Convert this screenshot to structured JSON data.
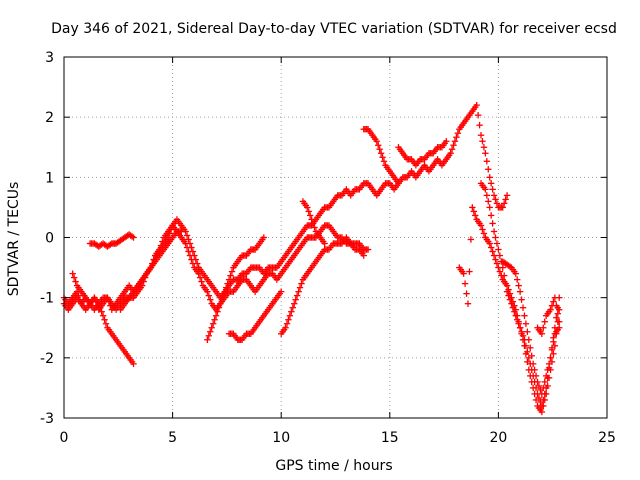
{
  "chart_data": {
    "type": "scatter",
    "title": "Day 346 of 2021, Sidereal Day-to-day VTEC variation (SDTVAR) for receiver ecsd",
    "xlabel": "GPS time / hours",
    "ylabel": "SDTVAR / TECUs",
    "xlim": [
      0,
      25
    ],
    "ylim": [
      -3,
      3
    ],
    "xticks": [
      "0",
      "5",
      "10",
      "15",
      "20",
      "25"
    ],
    "yticks": [
      "-3",
      "-2",
      "-1",
      "0",
      "1",
      "2",
      "3"
    ],
    "grid": true,
    "marker": "+",
    "marker_color": "#ff0000",
    "series": [
      {
        "x": [
          0.0,
          0.2,
          0.4,
          0.6,
          0.8,
          1.0,
          1.2,
          1.4,
          1.6,
          1.8,
          2.0,
          2.2,
          2.4,
          2.6,
          2.8,
          3.0,
          3.2,
          3.4,
          3.6,
          3.8,
          4.0,
          4.2,
          4.4,
          4.6,
          4.8,
          5.0,
          5.2,
          5.4,
          5.6,
          5.8,
          6.0,
          6.2,
          6.4,
          6.6,
          6.8,
          7.0,
          7.2,
          7.4,
          7.6,
          7.8,
          8.0,
          8.2,
          8.4,
          8.6,
          8.8,
          9.0,
          9.2,
          9.4,
          9.6,
          9.8,
          10.0,
          10.2,
          10.4,
          10.6,
          10.8,
          11.0,
          11.2,
          11.4,
          11.6,
          11.8,
          12.0,
          12.2,
          12.4,
          12.6,
          12.8,
          13.0,
          13.2,
          13.4,
          13.6,
          13.8,
          14.0,
          14.2,
          14.4,
          14.6,
          14.8,
          15.0,
          15.2,
          15.4,
          15.6,
          15.8,
          16.0,
          16.2,
          16.4,
          16.6,
          16.8,
          17.0,
          17.2,
          17.4,
          17.6,
          17.8,
          18.0,
          18.2,
          18.4,
          18.6,
          18.8,
          19.0,
          19.2,
          19.4,
          19.6,
          19.8,
          20.0,
          20.2,
          20.4
        ],
        "y": [
          -1.0,
          -1.1,
          -1.0,
          -0.9,
          -1.1,
          -1.0,
          -1.1,
          -1.0,
          -1.2,
          -1.1,
          -1.0,
          -1.2,
          -1.1,
          -1.0,
          -0.9,
          -0.8,
          -0.9,
          -0.8,
          -0.7,
          -0.6,
          -0.5,
          -0.3,
          -0.2,
          -0.1,
          0.0,
          0.2,
          0.3,
          0.2,
          0.1,
          -0.1,
          -0.3,
          -0.5,
          -0.6,
          -0.7,
          -0.8,
          -0.9,
          -1.0,
          -0.9,
          -0.8,
          -0.7,
          -0.7,
          -0.6,
          -0.6,
          -0.5,
          -0.5,
          -0.5,
          -0.6,
          -0.5,
          -0.5,
          -0.5,
          -0.4,
          -0.3,
          -0.2,
          -0.1,
          0.0,
          0.1,
          0.2,
          0.2,
          0.3,
          0.4,
          0.5,
          0.5,
          0.6,
          0.7,
          0.7,
          0.8,
          0.7,
          0.8,
          0.8,
          0.9,
          0.9,
          0.8,
          0.7,
          0.8,
          0.9,
          0.9,
          0.8,
          0.9,
          1.0,
          1.0,
          1.1,
          1.0,
          1.1,
          1.2,
          1.1,
          1.2,
          1.3,
          1.2,
          1.3,
          1.4,
          1.6,
          1.8,
          1.9,
          2.0,
          2.1,
          2.2,
          1.7,
          1.4,
          1.0,
          0.7,
          0.5,
          0.5,
          0.7
        ]
      },
      {
        "x": [
          0.0,
          0.2,
          0.4,
          0.6,
          0.8,
          1.0,
          1.2,
          1.4,
          1.6,
          1.8,
          2.0,
          2.2,
          2.4,
          2.6,
          2.8,
          3.0,
          3.2,
          3.4,
          3.6,
          3.8,
          4.0,
          4.2,
          4.4,
          4.6,
          4.8,
          5.0,
          5.2,
          5.4,
          5.6,
          5.8,
          6.0,
          6.2,
          6.4,
          6.6,
          6.8,
          7.0,
          7.2,
          7.4,
          7.6,
          7.8,
          8.0,
          8.2,
          8.4,
          8.6,
          8.8,
          9.0,
          9.2,
          9.4,
          9.6,
          9.8,
          10.0,
          10.2,
          10.4,
          10.6,
          10.8,
          11.0,
          11.2,
          11.4,
          11.6,
          11.8,
          12.0,
          12.2,
          12.4,
          12.6,
          12.8,
          13.0,
          13.2,
          13.4,
          13.6,
          13.8,
          14.0
        ],
        "y": [
          -1.1,
          -1.2,
          -1.1,
          -1.0,
          -1.1,
          -1.2,
          -1.1,
          -1.0,
          -1.1,
          -1.0,
          -1.0,
          -1.1,
          -1.2,
          -1.1,
          -1.0,
          -1.0,
          -1.0,
          -0.9,
          -0.8,
          -0.6,
          -0.5,
          -0.3,
          -0.2,
          0.0,
          0.1,
          0.2,
          0.1,
          0.0,
          -0.1,
          -0.3,
          -0.5,
          -0.6,
          -0.8,
          -0.9,
          -1.1,
          -1.2,
          -1.1,
          -1.0,
          -0.9,
          -0.9,
          -0.8,
          -0.7,
          -0.7,
          -0.8,
          -0.9,
          -0.8,
          -0.7,
          -0.6,
          -0.6,
          -0.7,
          -0.6,
          -0.5,
          -0.4,
          -0.3,
          -0.2,
          -0.1,
          0.0,
          0.0,
          0.0,
          0.1,
          0.2,
          0.2,
          0.1,
          0.0,
          0.0,
          -0.1,
          -0.1,
          -0.1,
          -0.1,
          -0.2,
          -0.2
        ]
      },
      {
        "x": [
          0.4,
          0.6,
          0.8,
          1.0,
          1.2,
          1.4,
          1.6,
          1.8,
          2.0,
          2.2,
          2.4,
          2.6,
          2.8,
          3.0,
          3.2
        ],
        "y": [
          -0.6,
          -0.8,
          -0.9,
          -1.0,
          -1.1,
          -1.2,
          -1.1,
          -1.3,
          -1.5,
          -1.6,
          -1.7,
          -1.8,
          -1.9,
          -2.0,
          -2.1
        ]
      },
      {
        "x": [
          1.2,
          1.4,
          1.6,
          1.8,
          2.0,
          2.2,
          2.4,
          2.6,
          2.8,
          3.0,
          3.2
        ],
        "y": [
          -0.1,
          -0.1,
          -0.15,
          -0.1,
          -0.15,
          -0.1,
          -0.1,
          -0.05,
          0.0,
          0.05,
          0.0
        ]
      },
      {
        "x": [
          2.6,
          2.8,
          3.0,
          3.2,
          3.4,
          3.6,
          3.8,
          4.0,
          4.2,
          4.4,
          4.6,
          4.8,
          5.0,
          5.2,
          5.4
        ],
        "y": [
          -1.2,
          -1.1,
          -1.0,
          -0.9,
          -0.8,
          -0.7,
          -0.6,
          -0.5,
          -0.4,
          -0.3,
          -0.2,
          -0.1,
          0.0,
          0.1,
          0.1
        ]
      },
      {
        "x": [
          6.6,
          6.8,
          7.0,
          7.2,
          7.4,
          7.6,
          7.8,
          8.0,
          8.2,
          8.4,
          8.6,
          8.8,
          9.0,
          9.2
        ],
        "y": [
          -1.7,
          -1.5,
          -1.3,
          -1.1,
          -0.9,
          -0.7,
          -0.5,
          -0.4,
          -0.3,
          -0.3,
          -0.2,
          -0.2,
          -0.1,
          0.0
        ]
      },
      {
        "x": [
          7.6,
          7.8,
          8.0,
          8.2,
          8.4,
          8.6,
          8.8,
          9.0,
          9.2,
          9.4,
          9.6,
          9.8,
          10.0
        ],
        "y": [
          -1.6,
          -1.6,
          -1.7,
          -1.7,
          -1.6,
          -1.6,
          -1.5,
          -1.4,
          -1.3,
          -1.2,
          -1.1,
          -1.0,
          -0.9
        ]
      },
      {
        "x": [
          10.0,
          10.2,
          10.4,
          10.6,
          10.8,
          11.0,
          11.2,
          11.4,
          11.6,
          11.8,
          12.0,
          12.2,
          12.4,
          12.6,
          12.8,
          13.0,
          13.2,
          13.4,
          13.6,
          13.8
        ],
        "y": [
          -1.6,
          -1.5,
          -1.3,
          -1.1,
          -0.9,
          -0.7,
          -0.6,
          -0.5,
          -0.4,
          -0.3,
          -0.2,
          -0.2,
          -0.1,
          -0.1,
          -0.1,
          0.0,
          -0.1,
          -0.2,
          -0.2,
          -0.3
        ]
      },
      {
        "x": [
          11.0,
          11.2,
          11.4,
          11.6,
          11.8,
          12.0
        ],
        "y": [
          0.6,
          0.5,
          0.3,
          0.1,
          0.0,
          -0.1
        ]
      },
      {
        "x": [
          13.8,
          14.0,
          14.2,
          14.4,
          14.6,
          14.8,
          15.0,
          15.2,
          15.4
        ],
        "y": [
          1.8,
          1.8,
          1.7,
          1.6,
          1.4,
          1.2,
          1.1,
          1.0,
          0.9
        ]
      },
      {
        "x": [
          15.4,
          15.6,
          15.8,
          16.0,
          16.2,
          16.4,
          16.6,
          16.8,
          17.0,
          17.2,
          17.4,
          17.6
        ],
        "y": [
          1.5,
          1.4,
          1.3,
          1.3,
          1.2,
          1.3,
          1.3,
          1.4,
          1.4,
          1.5,
          1.5,
          1.6
        ]
      },
      {
        "x": [
          18.2,
          18.4,
          18.6,
          18.8,
          19.0,
          19.2,
          19.4,
          19.6,
          19.8,
          20.0,
          20.2,
          20.4,
          20.6,
          20.8,
          21.0,
          21.2,
          21.4,
          21.6,
          21.8,
          22.0,
          22.2,
          22.4,
          22.6,
          22.8
        ],
        "y": [
          -0.5,
          -0.6,
          -1.1,
          0.5,
          0.3,
          0.2,
          0.0,
          -0.1,
          -0.3,
          -0.5,
          -0.7,
          -0.8,
          -1.0,
          -1.2,
          -1.5,
          -1.8,
          -2.2,
          -2.5,
          -2.8,
          -2.9,
          -2.6,
          -2.2,
          -1.8,
          -1.2
        ]
      },
      {
        "x": [
          19.2,
          19.4,
          19.6,
          19.8,
          20.0,
          20.2,
          20.4,
          20.6,
          20.8,
          21.0,
          21.2,
          21.4,
          21.6,
          21.8,
          22.0,
          22.2,
          22.4,
          22.6,
          22.8
        ],
        "y": [
          0.9,
          0.8,
          0.5,
          0.1,
          -0.2,
          -0.5,
          -0.9,
          -1.1,
          -1.3,
          -1.5,
          -1.7,
          -2.0,
          -2.3,
          -2.6,
          -2.8,
          -2.5,
          -2.0,
          -1.5,
          -1.0
        ]
      },
      {
        "x": [
          20.2,
          20.4,
          20.6,
          20.8,
          21.0,
          21.2,
          21.4,
          21.6,
          21.8,
          22.0,
          22.2,
          22.4,
          22.6,
          22.8
        ],
        "y": [
          -0.4,
          -0.45,
          -0.5,
          -0.6,
          -0.9,
          -1.3,
          -1.7,
          -2.1,
          -2.4,
          -2.6,
          -2.3,
          -2.0,
          -1.6,
          -1.5
        ]
      },
      {
        "x": [
          21.8,
          22.0,
          22.2,
          22.4,
          22.6,
          22.8
        ],
        "y": [
          -1.5,
          -1.6,
          -1.3,
          -1.2,
          -1.0,
          -1.4
        ]
      }
    ]
  }
}
